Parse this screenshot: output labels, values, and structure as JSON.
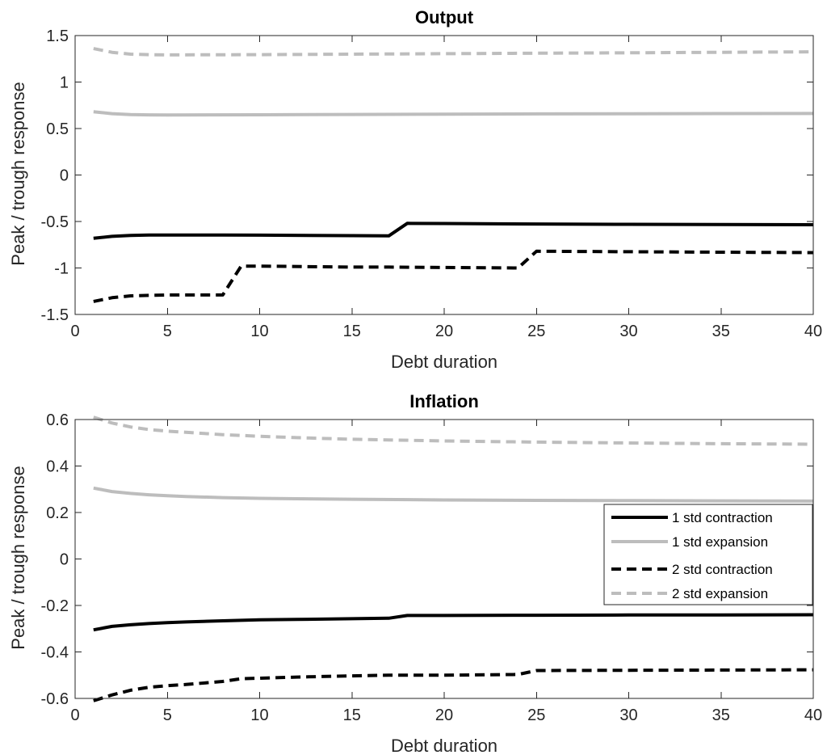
{
  "chart_data": [
    {
      "type": "line",
      "title": "Output",
      "xlabel": "Debt duration",
      "ylabel": "Peak / trough response",
      "xlim": [
        0,
        40
      ],
      "ylim": [
        -1.5,
        1.5
      ],
      "xticks": [
        0,
        5,
        10,
        15,
        20,
        25,
        30,
        35,
        40
      ],
      "yticks": [
        -1.5,
        -1,
        -0.5,
        0,
        0.5,
        1,
        1.5
      ],
      "ytick_labels": [
        "-1.5",
        "-1",
        "-0.5",
        "0",
        "0.5",
        "1",
        "1.5"
      ],
      "grid": false,
      "series": [
        {
          "name": "1 std contraction",
          "color": "#000000",
          "dash": "solid",
          "x": [
            1,
            2,
            3,
            4,
            5,
            8,
            10,
            15,
            17,
            18,
            20,
            25,
            30,
            35,
            40
          ],
          "y": [
            -0.68,
            -0.66,
            -0.65,
            -0.645,
            -0.645,
            -0.645,
            -0.647,
            -0.652,
            -0.655,
            -0.52,
            -0.522,
            -0.527,
            -0.53,
            -0.532,
            -0.535
          ]
        },
        {
          "name": "1 std expansion",
          "color": "#bdbdbd",
          "dash": "solid",
          "x": [
            1,
            2,
            3,
            4,
            5,
            10,
            15,
            20,
            25,
            30,
            35,
            40
          ],
          "y": [
            0.68,
            0.66,
            0.65,
            0.647,
            0.646,
            0.648,
            0.651,
            0.654,
            0.657,
            0.659,
            0.661,
            0.662
          ]
        },
        {
          "name": "2 std contraction",
          "color": "#000000",
          "dash": "dashed",
          "x": [
            1,
            2,
            3,
            4,
            5,
            6,
            7,
            8,
            9,
            10,
            15,
            17,
            20,
            24,
            25,
            30,
            35,
            40
          ],
          "y": [
            -1.36,
            -1.32,
            -1.3,
            -1.295,
            -1.29,
            -1.29,
            -1.29,
            -1.29,
            -0.98,
            -0.98,
            -0.99,
            -0.99,
            -0.995,
            -1.0,
            -0.82,
            -0.825,
            -0.83,
            -0.835
          ]
        },
        {
          "name": "2 std expansion",
          "color": "#bdbdbd",
          "dash": "dashed",
          "x": [
            1,
            2,
            3,
            4,
            5,
            10,
            15,
            20,
            25,
            30,
            35,
            40
          ],
          "y": [
            1.36,
            1.32,
            1.3,
            1.295,
            1.292,
            1.295,
            1.3,
            1.305,
            1.31,
            1.315,
            1.32,
            1.325
          ]
        }
      ]
    },
    {
      "type": "line",
      "title": "Inflation",
      "xlabel": "Debt duration",
      "ylabel": "Peak / trough response",
      "xlim": [
        0,
        40
      ],
      "ylim": [
        -0.6,
        0.6
      ],
      "xticks": [
        0,
        5,
        10,
        15,
        20,
        25,
        30,
        35,
        40
      ],
      "yticks": [
        -0.6,
        -0.4,
        -0.2,
        0,
        0.2,
        0.4,
        0.6
      ],
      "ytick_labels": [
        "-0.6",
        "-0.4",
        "-0.2",
        "0",
        "0.2",
        "0.4",
        "0.6"
      ],
      "grid": false,
      "legend": {
        "position": "right"
      },
      "series": [
        {
          "name": "1 std contraction",
          "color": "#000000",
          "dash": "solid",
          "x": [
            1,
            2,
            3,
            4,
            5,
            6,
            8,
            10,
            12,
            15,
            17,
            18,
            20,
            25,
            30,
            35,
            40
          ],
          "y": [
            -0.305,
            -0.29,
            -0.283,
            -0.278,
            -0.274,
            -0.271,
            -0.266,
            -0.262,
            -0.26,
            -0.257,
            -0.255,
            -0.243,
            -0.243,
            -0.242,
            -0.241,
            -0.241,
            -0.24
          ]
        },
        {
          "name": "1 std expansion",
          "color": "#bdbdbd",
          "dash": "solid",
          "x": [
            1,
            2,
            3,
            4,
            5,
            6,
            8,
            10,
            12,
            15,
            20,
            25,
            30,
            35,
            40
          ],
          "y": [
            0.305,
            0.29,
            0.282,
            0.276,
            0.272,
            0.269,
            0.264,
            0.261,
            0.259,
            0.257,
            0.254,
            0.252,
            0.251,
            0.25,
            0.249
          ]
        },
        {
          "name": "2 std contraction",
          "color": "#000000",
          "dash": "dashed",
          "x": [
            1,
            2,
            3,
            4,
            5,
            6,
            8,
            9,
            10,
            12,
            15,
            17,
            20,
            24,
            25,
            30,
            35,
            40
          ],
          "y": [
            -0.61,
            -0.585,
            -0.565,
            -0.552,
            -0.545,
            -0.54,
            -0.527,
            -0.515,
            -0.513,
            -0.508,
            -0.503,
            -0.5,
            -0.5,
            -0.497,
            -0.48,
            -0.479,
            -0.478,
            -0.477
          ]
        },
        {
          "name": "2 std expansion",
          "color": "#bdbdbd",
          "dash": "dashed",
          "x": [
            1,
            2,
            3,
            4,
            5,
            6,
            8,
            10,
            12,
            15,
            20,
            25,
            30,
            35,
            40
          ],
          "y": [
            0.61,
            0.585,
            0.568,
            0.557,
            0.55,
            0.545,
            0.535,
            0.528,
            0.522,
            0.515,
            0.508,
            0.503,
            0.499,
            0.496,
            0.494
          ]
        }
      ]
    }
  ]
}
